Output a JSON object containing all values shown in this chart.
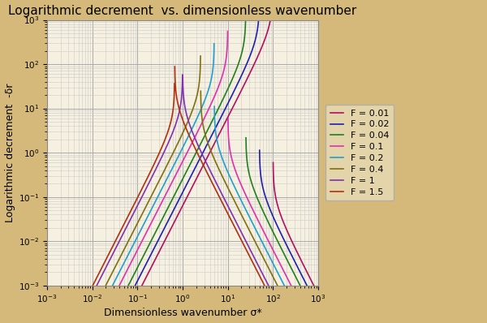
{
  "title": "Logarithmic decrement  vs. dimensionless wavenumber",
  "xlabel": "Dimensionless wavenumber σ*",
  "ylabel": "Logarithmic decrement  -δr",
  "background_color": "#d4b97a",
  "plot_bg_color": "#f5f0e0",
  "grid_major_color": "#aaaaaa",
  "grid_minor_color": "#cccccc",
  "title_fontsize": 11,
  "label_fontsize": 9,
  "froude_numbers": [
    0.01,
    0.02,
    0.04,
    0.1,
    0.2,
    0.4,
    1.0,
    1.5
  ],
  "line_colors": [
    "#b01060",
    "#2020b0",
    "#208020",
    "#e030b0",
    "#20a0d0",
    "#807010",
    "#8030b0",
    "#b03010"
  ],
  "legend_labels": [
    "F = 0.01",
    "F = 0.02",
    "F = 0.04",
    "F = 0.1",
    "F = 0.2",
    "F = 0.4",
    "F = 1",
    "F = 1.5"
  ]
}
